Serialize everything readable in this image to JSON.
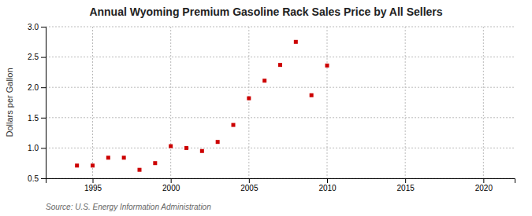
{
  "chart_data": {
    "type": "scatter",
    "title": "Annual Wyoming Premium Gasoline Rack Sales Price by All Sellers",
    "ylabel": "Dollars per Gallon",
    "source": "Source: U.S. Energy Information Administration",
    "x": [
      1994,
      1995,
      1996,
      1997,
      1998,
      1999,
      2000,
      2001,
      2002,
      2003,
      2004,
      2005,
      2006,
      2007,
      2008,
      2009,
      2010
    ],
    "values": [
      0.71,
      0.71,
      0.84,
      0.84,
      0.64,
      0.75,
      1.03,
      1.0,
      0.95,
      1.1,
      1.38,
      1.82,
      2.11,
      2.37,
      2.75,
      1.87,
      2.36
    ],
    "color": "#cc0000",
    "marker": "square",
    "xlim": [
      1992,
      2022
    ],
    "ylim": [
      0.5,
      3.0
    ],
    "xticks": [
      1995,
      2000,
      2005,
      2010,
      2015,
      2020
    ],
    "yticks": [
      0.5,
      {
        "value": 1.0,
        "label": "1.0"
      },
      1.5,
      {
        "value": 2.0,
        "label": "2.0"
      },
      2.5,
      {
        "value": 3.0,
        "label": "3.0"
      }
    ],
    "grid": true
  }
}
